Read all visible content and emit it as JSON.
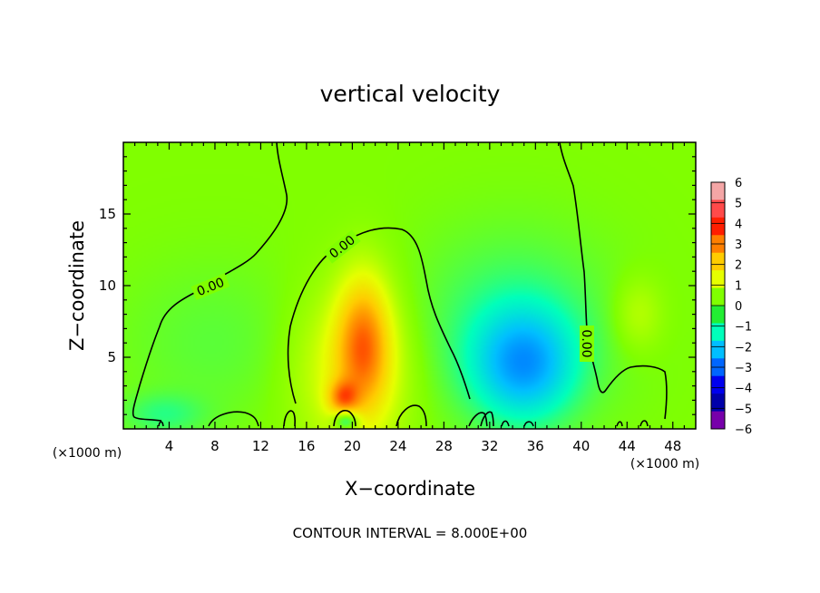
{
  "chart_data": {
    "type": "heatmap",
    "title": "vertical velocity",
    "xlabel": "X−coordinate",
    "ylabel": "Z−coordinate",
    "x_unit": "(×1000 m)",
    "x_unit_right": "(×1000 m)",
    "xlim": [
      0,
      50
    ],
    "ylim": [
      0,
      20
    ],
    "x_ticks": [
      4,
      8,
      12,
      16,
      20,
      24,
      28,
      32,
      36,
      40,
      44,
      48
    ],
    "y_ticks": [
      5,
      10,
      15
    ],
    "footer": "CONTOUR INTERVAL = 8.000E+00",
    "contour_label": "0.00",
    "colorbar": {
      "values": [
        6,
        5,
        4,
        3,
        2,
        1,
        0,
        -1,
        -2,
        -3,
        -4,
        -5,
        -6
      ],
      "labels": [
        "6",
        "5",
        "4",
        "3",
        "2",
        "1",
        "0",
        "−1",
        "−2",
        "−3",
        "−4",
        "−5",
        "−6"
      ],
      "colors": [
        "#f4a6a6",
        "#ff4a4a",
        "#ff1e00",
        "#ff7f00",
        "#ffcc00",
        "#e6ff00",
        "#80ff00",
        "#22ee33",
        "#00ffbb",
        "#00bfff",
        "#0066ff",
        "#0000ee",
        "#0000aa",
        "#7700aa"
      ]
    },
    "features": [
      {
        "x": 21,
        "z": 6,
        "value": 2.5,
        "sx": 1.6,
        "sz": 3.2
      },
      {
        "x": 20,
        "z": 4,
        "value": 1.2,
        "sx": 3.5,
        "sz": 4.0
      },
      {
        "x": 19.2,
        "z": 2.2,
        "value": 2.0,
        "sx": 0.9,
        "sz": 0.8
      },
      {
        "x": 35,
        "z": 4.5,
        "value": -2.0,
        "sx": 3.0,
        "sz": 2.6
      },
      {
        "x": 34,
        "z": 7,
        "value": -0.7,
        "sx": 6.0,
        "sz": 4.5
      },
      {
        "x": 19.5,
        "z": 0.6,
        "value": -1.8,
        "sx": 0.8,
        "sz": 0.5
      },
      {
        "x": 45,
        "z": 8,
        "value": 0.6,
        "sx": 1.5,
        "sz": 1.8
      },
      {
        "x": 3.5,
        "z": 1.0,
        "value": -0.6,
        "sx": 2.5,
        "sz": 1.0
      },
      {
        "x": 8,
        "z": 6,
        "value": -0.3,
        "sx": 6.0,
        "sz": 4.0
      }
    ]
  }
}
